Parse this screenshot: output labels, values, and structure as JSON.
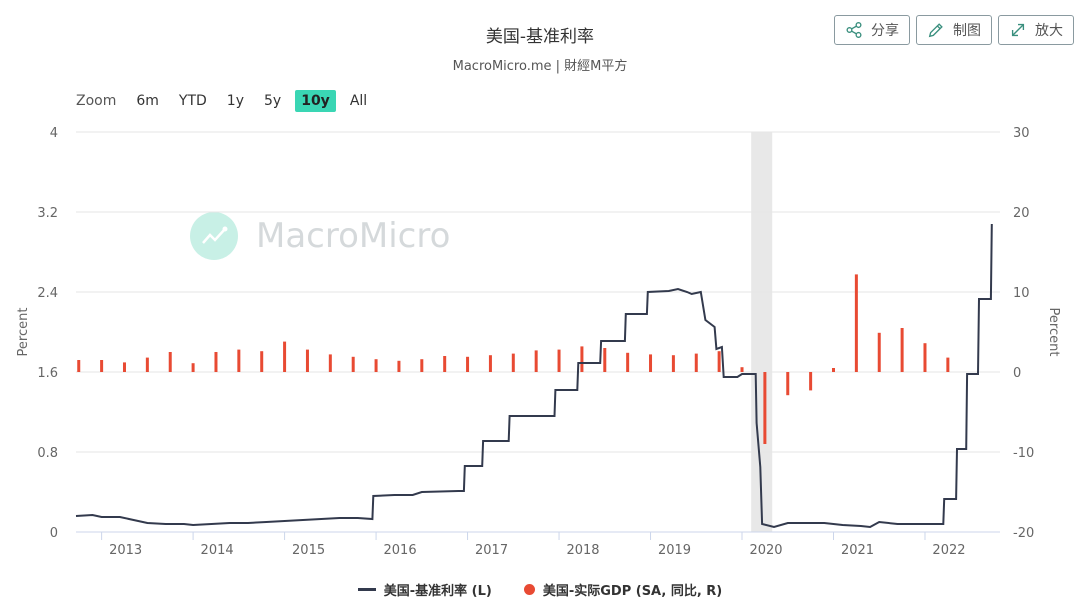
{
  "header": {
    "title": "美国-基准利率",
    "subtitle": "MacroMicro.me | 財經M平方",
    "share_label": "分享",
    "chart_label": "制图",
    "enlarge_label": "放大"
  },
  "zoom": {
    "label": "Zoom",
    "buttons": [
      "6m",
      "YTD",
      "1y",
      "5y",
      "10y",
      "All"
    ],
    "active": "10y"
  },
  "watermark": {
    "text": "MacroMicro"
  },
  "colors": {
    "rate_line": "#333a4d",
    "gdp_bar": "#e84a33",
    "recession": "#e8e8e8",
    "accent": "#3ad6b4"
  },
  "chart_data": {
    "type": "line",
    "left_axis": {
      "label": "Percent",
      "ticks": [
        "0",
        "0.8",
        "1.6",
        "2.4",
        "3.2",
        "4"
      ],
      "range": [
        0,
        4
      ]
    },
    "right_axis": {
      "label": "Percent",
      "ticks": [
        "-20",
        "-10",
        "0",
        "10",
        "20",
        "30"
      ],
      "range": [
        -20,
        30
      ]
    },
    "x_ticks": [
      "2013",
      "2014",
      "2015",
      "2016",
      "2017",
      "2018",
      "2019",
      "2020",
      "2021",
      "2022"
    ],
    "x_range": [
      2012.72,
      2022.82
    ],
    "recession": [
      2020.1,
      2020.33
    ],
    "series": [
      {
        "name": "美国-基准利率 (L)",
        "type": "line",
        "axis": "left",
        "points": [
          [
            2012.72,
            0.16
          ],
          [
            2012.9,
            0.17
          ],
          [
            2013.0,
            0.15
          ],
          [
            2013.2,
            0.15
          ],
          [
            2013.35,
            0.12
          ],
          [
            2013.5,
            0.09
          ],
          [
            2013.7,
            0.08
          ],
          [
            2013.9,
            0.08
          ],
          [
            2014.0,
            0.07
          ],
          [
            2014.2,
            0.08
          ],
          [
            2014.4,
            0.09
          ],
          [
            2014.6,
            0.09
          ],
          [
            2014.8,
            0.1
          ],
          [
            2015.0,
            0.11
          ],
          [
            2015.2,
            0.12
          ],
          [
            2015.4,
            0.13
          ],
          [
            2015.6,
            0.14
          ],
          [
            2015.8,
            0.14
          ],
          [
            2015.96,
            0.13
          ],
          [
            2015.97,
            0.36
          ],
          [
            2016.2,
            0.37
          ],
          [
            2016.4,
            0.37
          ],
          [
            2016.5,
            0.4
          ],
          [
            2016.9,
            0.41
          ],
          [
            2016.96,
            0.41
          ],
          [
            2016.97,
            0.66
          ],
          [
            2017.16,
            0.66
          ],
          [
            2017.17,
            0.91
          ],
          [
            2017.45,
            0.91
          ],
          [
            2017.46,
            1.16
          ],
          [
            2017.95,
            1.16
          ],
          [
            2017.96,
            1.42
          ],
          [
            2018.2,
            1.42
          ],
          [
            2018.21,
            1.69
          ],
          [
            2018.45,
            1.69
          ],
          [
            2018.46,
            1.91
          ],
          [
            2018.72,
            1.91
          ],
          [
            2018.73,
            2.18
          ],
          [
            2018.96,
            2.18
          ],
          [
            2018.97,
            2.4
          ],
          [
            2019.2,
            2.41
          ],
          [
            2019.3,
            2.43
          ],
          [
            2019.4,
            2.4
          ],
          [
            2019.45,
            2.38
          ],
          [
            2019.55,
            2.4
          ],
          [
            2019.6,
            2.12
          ],
          [
            2019.7,
            2.05
          ],
          [
            2019.72,
            1.83
          ],
          [
            2019.78,
            1.85
          ],
          [
            2019.8,
            1.55
          ],
          [
            2019.95,
            1.55
          ],
          [
            2020.0,
            1.58
          ],
          [
            2020.15,
            1.58
          ],
          [
            2020.16,
            1.09
          ],
          [
            2020.2,
            0.65
          ],
          [
            2020.22,
            0.08
          ],
          [
            2020.35,
            0.05
          ],
          [
            2020.5,
            0.09
          ],
          [
            2020.7,
            0.09
          ],
          [
            2020.9,
            0.09
          ],
          [
            2021.1,
            0.07
          ],
          [
            2021.3,
            0.06
          ],
          [
            2021.4,
            0.05
          ],
          [
            2021.5,
            0.1
          ],
          [
            2021.7,
            0.08
          ],
          [
            2022.0,
            0.08
          ],
          [
            2022.2,
            0.08
          ],
          [
            2022.21,
            0.33
          ],
          [
            2022.34,
            0.33
          ],
          [
            2022.35,
            0.83
          ],
          [
            2022.45,
            0.83
          ],
          [
            2022.46,
            1.58
          ],
          [
            2022.58,
            1.58
          ],
          [
            2022.59,
            2.33
          ],
          [
            2022.72,
            2.33
          ],
          [
            2022.73,
            3.08
          ]
        ]
      },
      {
        "name": "美国-实际GDP (SA, 同比, R)",
        "type": "bar",
        "axis": "right",
        "points": [
          [
            2012.75,
            1.5
          ],
          [
            2013.0,
            1.5
          ],
          [
            2013.25,
            1.2
          ],
          [
            2013.5,
            1.8
          ],
          [
            2013.75,
            2.5
          ],
          [
            2014.0,
            1.1
          ],
          [
            2014.25,
            2.5
          ],
          [
            2014.5,
            2.8
          ],
          [
            2014.75,
            2.6
          ],
          [
            2015.0,
            3.8
          ],
          [
            2015.25,
            2.8
          ],
          [
            2015.5,
            2.2
          ],
          [
            2015.75,
            1.9
          ],
          [
            2016.0,
            1.6
          ],
          [
            2016.25,
            1.4
          ],
          [
            2016.5,
            1.6
          ],
          [
            2016.75,
            2.0
          ],
          [
            2017.0,
            1.9
          ],
          [
            2017.25,
            2.1
          ],
          [
            2017.5,
            2.3
          ],
          [
            2017.75,
            2.7
          ],
          [
            2018.0,
            2.8
          ],
          [
            2018.25,
            3.2
          ],
          [
            2018.5,
            3.0
          ],
          [
            2018.75,
            2.4
          ],
          [
            2019.0,
            2.2
          ],
          [
            2019.25,
            2.1
          ],
          [
            2019.5,
            2.3
          ],
          [
            2019.75,
            2.6
          ],
          [
            2020.0,
            0.6
          ],
          [
            2020.25,
            -9.0
          ],
          [
            2020.5,
            -2.9
          ],
          [
            2020.75,
            -2.3
          ],
          [
            2021.0,
            0.5
          ],
          [
            2021.25,
            12.2
          ],
          [
            2021.5,
            4.9
          ],
          [
            2021.75,
            5.5
          ],
          [
            2022.0,
            3.6
          ],
          [
            2022.25,
            1.8
          ]
        ]
      }
    ]
  }
}
